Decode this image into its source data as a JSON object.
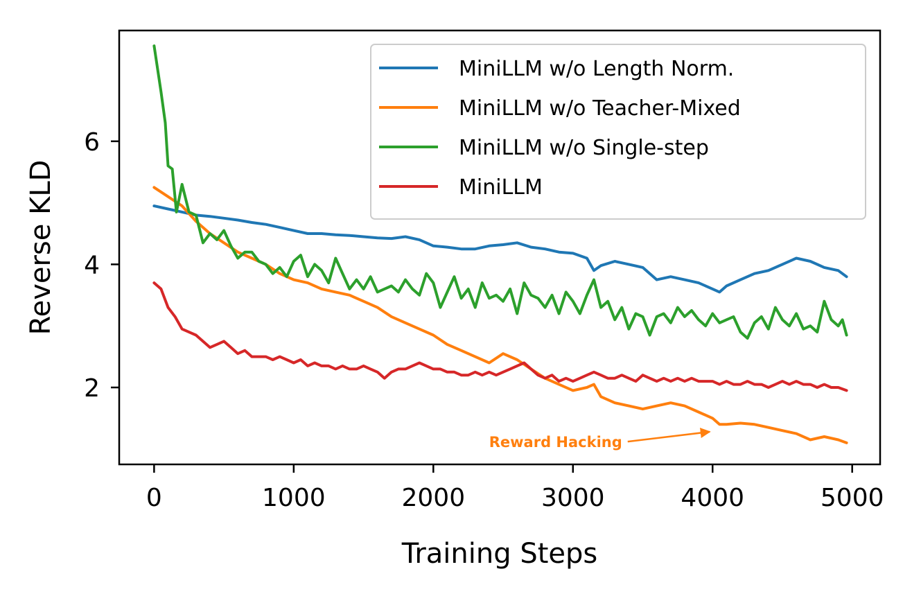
{
  "chart_data": {
    "type": "line",
    "title": "",
    "xlabel": "Training Steps",
    "ylabel": "Reverse KLD",
    "xlim": [
      -250,
      5200
    ],
    "ylim": [
      0.75,
      7.8
    ],
    "xticks": [
      0,
      1000,
      2000,
      3000,
      4000,
      5000
    ],
    "yticks": [
      2,
      4,
      6
    ],
    "grid": false,
    "legend_position": "top-right",
    "series": [
      {
        "name": "MiniLLM w/o Length Norm.",
        "color": "#1f77b4",
        "points": [
          [
            0,
            4.95
          ],
          [
            100,
            4.9
          ],
          [
            200,
            4.85
          ],
          [
            300,
            4.8
          ],
          [
            400,
            4.78
          ],
          [
            500,
            4.75
          ],
          [
            600,
            4.72
          ],
          [
            700,
            4.68
          ],
          [
            800,
            4.65
          ],
          [
            900,
            4.6
          ],
          [
            1000,
            4.55
          ],
          [
            1100,
            4.5
          ],
          [
            1200,
            4.5
          ],
          [
            1300,
            4.48
          ],
          [
            1400,
            4.47
          ],
          [
            1500,
            4.45
          ],
          [
            1600,
            4.43
          ],
          [
            1700,
            4.42
          ],
          [
            1800,
            4.45
          ],
          [
            1900,
            4.4
          ],
          [
            2000,
            4.3
          ],
          [
            2100,
            4.28
          ],
          [
            2200,
            4.25
          ],
          [
            2300,
            4.25
          ],
          [
            2400,
            4.3
          ],
          [
            2500,
            4.32
          ],
          [
            2600,
            4.35
          ],
          [
            2700,
            4.28
          ],
          [
            2800,
            4.25
          ],
          [
            2900,
            4.2
          ],
          [
            3000,
            4.18
          ],
          [
            3100,
            4.1
          ],
          [
            3150,
            3.9
          ],
          [
            3200,
            3.98
          ],
          [
            3300,
            4.05
          ],
          [
            3400,
            4.0
          ],
          [
            3500,
            3.95
          ],
          [
            3600,
            3.75
          ],
          [
            3700,
            3.8
          ],
          [
            3800,
            3.75
          ],
          [
            3900,
            3.7
          ],
          [
            4000,
            3.6
          ],
          [
            4050,
            3.55
          ],
          [
            4100,
            3.65
          ],
          [
            4200,
            3.75
          ],
          [
            4300,
            3.85
          ],
          [
            4400,
            3.9
          ],
          [
            4500,
            4.0
          ],
          [
            4600,
            4.1
          ],
          [
            4700,
            4.05
          ],
          [
            4800,
            3.95
          ],
          [
            4900,
            3.9
          ],
          [
            4960,
            3.8
          ]
        ]
      },
      {
        "name": "MiniLLM w/o Teacher-Mixed",
        "color": "#ff7f0e",
        "points": [
          [
            0,
            5.25
          ],
          [
            100,
            5.1
          ],
          [
            200,
            4.95
          ],
          [
            300,
            4.7
          ],
          [
            400,
            4.5
          ],
          [
            500,
            4.35
          ],
          [
            600,
            4.2
          ],
          [
            700,
            4.1
          ],
          [
            800,
            4.0
          ],
          [
            900,
            3.85
          ],
          [
            1000,
            3.75
          ],
          [
            1100,
            3.7
          ],
          [
            1200,
            3.6
          ],
          [
            1300,
            3.55
          ],
          [
            1400,
            3.5
          ],
          [
            1500,
            3.4
          ],
          [
            1600,
            3.3
          ],
          [
            1700,
            3.15
          ],
          [
            1800,
            3.05
          ],
          [
            1900,
            2.95
          ],
          [
            2000,
            2.85
          ],
          [
            2100,
            2.7
          ],
          [
            2200,
            2.6
          ],
          [
            2300,
            2.5
          ],
          [
            2400,
            2.4
          ],
          [
            2500,
            2.55
          ],
          [
            2600,
            2.45
          ],
          [
            2700,
            2.3
          ],
          [
            2800,
            2.15
          ],
          [
            2900,
            2.05
          ],
          [
            3000,
            1.95
          ],
          [
            3100,
            2.0
          ],
          [
            3150,
            2.05
          ],
          [
            3200,
            1.85
          ],
          [
            3300,
            1.75
          ],
          [
            3400,
            1.7
          ],
          [
            3500,
            1.65
          ],
          [
            3600,
            1.7
          ],
          [
            3700,
            1.75
          ],
          [
            3800,
            1.7
          ],
          [
            3900,
            1.6
          ],
          [
            4000,
            1.5
          ],
          [
            4050,
            1.4
          ],
          [
            4100,
            1.4
          ],
          [
            4200,
            1.42
          ],
          [
            4300,
            1.4
          ],
          [
            4400,
            1.35
          ],
          [
            4500,
            1.3
          ],
          [
            4600,
            1.25
          ],
          [
            4700,
            1.15
          ],
          [
            4800,
            1.2
          ],
          [
            4900,
            1.15
          ],
          [
            4960,
            1.1
          ]
        ]
      },
      {
        "name": "MiniLLM w/o Single-step",
        "color": "#2ca02c",
        "points": [
          [
            0,
            7.55
          ],
          [
            50,
            6.8
          ],
          [
            80,
            6.3
          ],
          [
            100,
            5.6
          ],
          [
            130,
            5.55
          ],
          [
            160,
            4.85
          ],
          [
            200,
            5.3
          ],
          [
            250,
            4.85
          ],
          [
            300,
            4.8
          ],
          [
            350,
            4.35
          ],
          [
            400,
            4.5
          ],
          [
            450,
            4.4
          ],
          [
            500,
            4.55
          ],
          [
            550,
            4.3
          ],
          [
            600,
            4.1
          ],
          [
            650,
            4.2
          ],
          [
            700,
            4.2
          ],
          [
            750,
            4.05
          ],
          [
            800,
            4.0
          ],
          [
            850,
            3.85
          ],
          [
            900,
            3.95
          ],
          [
            950,
            3.8
          ],
          [
            1000,
            4.05
          ],
          [
            1050,
            4.15
          ],
          [
            1100,
            3.8
          ],
          [
            1150,
            4.0
          ],
          [
            1200,
            3.9
          ],
          [
            1250,
            3.7
          ],
          [
            1300,
            4.1
          ],
          [
            1350,
            3.85
          ],
          [
            1400,
            3.6
          ],
          [
            1450,
            3.75
          ],
          [
            1500,
            3.6
          ],
          [
            1550,
            3.8
          ],
          [
            1600,
            3.55
          ],
          [
            1650,
            3.6
          ],
          [
            1700,
            3.65
          ],
          [
            1750,
            3.55
          ],
          [
            1800,
            3.75
          ],
          [
            1850,
            3.6
          ],
          [
            1900,
            3.5
          ],
          [
            1950,
            3.85
          ],
          [
            2000,
            3.7
          ],
          [
            2050,
            3.3
          ],
          [
            2100,
            3.55
          ],
          [
            2150,
            3.8
          ],
          [
            2200,
            3.45
          ],
          [
            2250,
            3.6
          ],
          [
            2300,
            3.3
          ],
          [
            2350,
            3.7
          ],
          [
            2400,
            3.45
          ],
          [
            2450,
            3.5
          ],
          [
            2500,
            3.4
          ],
          [
            2550,
            3.6
          ],
          [
            2600,
            3.2
          ],
          [
            2650,
            3.7
          ],
          [
            2700,
            3.5
          ],
          [
            2750,
            3.45
          ],
          [
            2800,
            3.3
          ],
          [
            2850,
            3.5
          ],
          [
            2900,
            3.2
          ],
          [
            2950,
            3.55
          ],
          [
            3000,
            3.4
          ],
          [
            3050,
            3.2
          ],
          [
            3100,
            3.5
          ],
          [
            3150,
            3.75
          ],
          [
            3200,
            3.3
          ],
          [
            3250,
            3.4
          ],
          [
            3300,
            3.1
          ],
          [
            3350,
            3.3
          ],
          [
            3400,
            2.95
          ],
          [
            3450,
            3.2
          ],
          [
            3500,
            3.15
          ],
          [
            3550,
            2.85
          ],
          [
            3600,
            3.15
          ],
          [
            3650,
            3.2
          ],
          [
            3700,
            3.05
          ],
          [
            3750,
            3.3
          ],
          [
            3800,
            3.15
          ],
          [
            3850,
            3.25
          ],
          [
            3900,
            3.1
          ],
          [
            3950,
            3.0
          ],
          [
            4000,
            3.2
          ],
          [
            4050,
            3.05
          ],
          [
            4100,
            3.1
          ],
          [
            4150,
            3.15
          ],
          [
            4200,
            2.9
          ],
          [
            4250,
            2.8
          ],
          [
            4300,
            3.05
          ],
          [
            4350,
            3.15
          ],
          [
            4400,
            2.95
          ],
          [
            4450,
            3.3
          ],
          [
            4500,
            3.1
          ],
          [
            4550,
            3.0
          ],
          [
            4600,
            3.2
          ],
          [
            4650,
            2.95
          ],
          [
            4700,
            3.0
          ],
          [
            4750,
            2.9
          ],
          [
            4800,
            3.4
          ],
          [
            4850,
            3.1
          ],
          [
            4900,
            3.0
          ],
          [
            4930,
            3.1
          ],
          [
            4960,
            2.85
          ]
        ]
      },
      {
        "name": "MiniLLM",
        "color": "#d62728",
        "points": [
          [
            0,
            3.7
          ],
          [
            50,
            3.6
          ],
          [
            100,
            3.3
          ],
          [
            150,
            3.15
          ],
          [
            200,
            2.95
          ],
          [
            250,
            2.9
          ],
          [
            300,
            2.85
          ],
          [
            350,
            2.75
          ],
          [
            400,
            2.65
          ],
          [
            450,
            2.7
          ],
          [
            500,
            2.75
          ],
          [
            550,
            2.65
          ],
          [
            600,
            2.55
          ],
          [
            650,
            2.6
          ],
          [
            700,
            2.5
          ],
          [
            750,
            2.5
          ],
          [
            800,
            2.5
          ],
          [
            850,
            2.45
          ],
          [
            900,
            2.5
          ],
          [
            950,
            2.45
          ],
          [
            1000,
            2.4
          ],
          [
            1050,
            2.45
          ],
          [
            1100,
            2.35
          ],
          [
            1150,
            2.4
          ],
          [
            1200,
            2.35
          ],
          [
            1250,
            2.35
          ],
          [
            1300,
            2.3
          ],
          [
            1350,
            2.35
          ],
          [
            1400,
            2.3
          ],
          [
            1450,
            2.3
          ],
          [
            1500,
            2.35
          ],
          [
            1550,
            2.3
          ],
          [
            1600,
            2.25
          ],
          [
            1650,
            2.15
          ],
          [
            1700,
            2.25
          ],
          [
            1750,
            2.3
          ],
          [
            1800,
            2.3
          ],
          [
            1850,
            2.35
          ],
          [
            1900,
            2.4
          ],
          [
            1950,
            2.35
          ],
          [
            2000,
            2.3
          ],
          [
            2050,
            2.3
          ],
          [
            2100,
            2.25
          ],
          [
            2150,
            2.25
          ],
          [
            2200,
            2.2
          ],
          [
            2250,
            2.2
          ],
          [
            2300,
            2.25
          ],
          [
            2350,
            2.2
          ],
          [
            2400,
            2.25
          ],
          [
            2450,
            2.2
          ],
          [
            2500,
            2.25
          ],
          [
            2550,
            2.3
          ],
          [
            2600,
            2.35
          ],
          [
            2650,
            2.4
          ],
          [
            2700,
            2.3
          ],
          [
            2750,
            2.2
          ],
          [
            2800,
            2.15
          ],
          [
            2850,
            2.2
          ],
          [
            2900,
            2.1
          ],
          [
            2950,
            2.15
          ],
          [
            3000,
            2.1
          ],
          [
            3050,
            2.15
          ],
          [
            3100,
            2.2
          ],
          [
            3150,
            2.25
          ],
          [
            3200,
            2.2
          ],
          [
            3250,
            2.15
          ],
          [
            3300,
            2.15
          ],
          [
            3350,
            2.2
          ],
          [
            3400,
            2.15
          ],
          [
            3450,
            2.1
          ],
          [
            3500,
            2.2
          ],
          [
            3550,
            2.15
          ],
          [
            3600,
            2.1
          ],
          [
            3650,
            2.15
          ],
          [
            3700,
            2.1
          ],
          [
            3750,
            2.15
          ],
          [
            3800,
            2.1
          ],
          [
            3850,
            2.15
          ],
          [
            3900,
            2.1
          ],
          [
            3950,
            2.1
          ],
          [
            4000,
            2.1
          ],
          [
            4050,
            2.05
          ],
          [
            4100,
            2.1
          ],
          [
            4150,
            2.05
          ],
          [
            4200,
            2.05
          ],
          [
            4250,
            2.1
          ],
          [
            4300,
            2.05
          ],
          [
            4350,
            2.05
          ],
          [
            4400,
            2.0
          ],
          [
            4450,
            2.05
          ],
          [
            4500,
            2.1
          ],
          [
            4550,
            2.05
          ],
          [
            4600,
            2.1
          ],
          [
            4650,
            2.05
          ],
          [
            4700,
            2.05
          ],
          [
            4750,
            2.0
          ],
          [
            4800,
            2.05
          ],
          [
            4850,
            2.0
          ],
          [
            4900,
            2.0
          ],
          [
            4960,
            1.95
          ]
        ]
      }
    ],
    "annotations": [
      {
        "text": "Reward Hacking",
        "color": "#ff7f0e",
        "text_x": 2300,
        "text_y": 1.12,
        "arrow_to_x": 4000,
        "arrow_to_y": 1.28
      }
    ]
  }
}
